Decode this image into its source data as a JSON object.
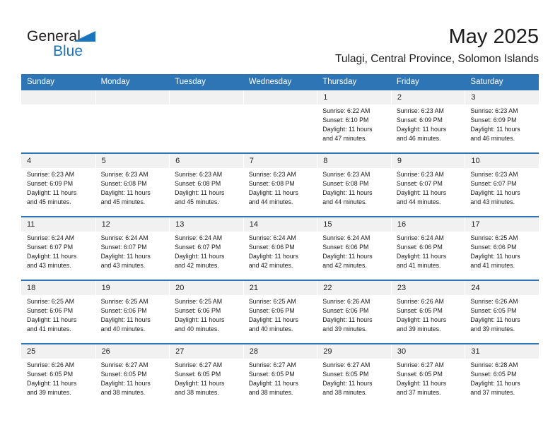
{
  "logo": {
    "general": "General",
    "blue": "Blue"
  },
  "title": "May 2025",
  "subtitle": "Tulagi, Central Province, Solomon Islands",
  "colors": {
    "header_blue": "#2e75b6",
    "logo_blue": "#1b75bc",
    "band_gray": "#f1f1f1",
    "text_dark": "#1a1a1a"
  },
  "weekdays": [
    "Sunday",
    "Monday",
    "Tuesday",
    "Wednesday",
    "Thursday",
    "Friday",
    "Saturday"
  ],
  "weeks": [
    [
      null,
      null,
      null,
      null,
      {
        "day": "1",
        "sunrise": "Sunrise: 6:22 AM",
        "sunset": "Sunset: 6:10 PM",
        "daylight1": "Daylight: 11 hours",
        "daylight2": "and 47 minutes."
      },
      {
        "day": "2",
        "sunrise": "Sunrise: 6:23 AM",
        "sunset": "Sunset: 6:09 PM",
        "daylight1": "Daylight: 11 hours",
        "daylight2": "and 46 minutes."
      },
      {
        "day": "3",
        "sunrise": "Sunrise: 6:23 AM",
        "sunset": "Sunset: 6:09 PM",
        "daylight1": "Daylight: 11 hours",
        "daylight2": "and 46 minutes."
      }
    ],
    [
      {
        "day": "4",
        "sunrise": "Sunrise: 6:23 AM",
        "sunset": "Sunset: 6:09 PM",
        "daylight1": "Daylight: 11 hours",
        "daylight2": "and 45 minutes."
      },
      {
        "day": "5",
        "sunrise": "Sunrise: 6:23 AM",
        "sunset": "Sunset: 6:08 PM",
        "daylight1": "Daylight: 11 hours",
        "daylight2": "and 45 minutes."
      },
      {
        "day": "6",
        "sunrise": "Sunrise: 6:23 AM",
        "sunset": "Sunset: 6:08 PM",
        "daylight1": "Daylight: 11 hours",
        "daylight2": "and 45 minutes."
      },
      {
        "day": "7",
        "sunrise": "Sunrise: 6:23 AM",
        "sunset": "Sunset: 6:08 PM",
        "daylight1": "Daylight: 11 hours",
        "daylight2": "and 44 minutes."
      },
      {
        "day": "8",
        "sunrise": "Sunrise: 6:23 AM",
        "sunset": "Sunset: 6:08 PM",
        "daylight1": "Daylight: 11 hours",
        "daylight2": "and 44 minutes."
      },
      {
        "day": "9",
        "sunrise": "Sunrise: 6:23 AM",
        "sunset": "Sunset: 6:07 PM",
        "daylight1": "Daylight: 11 hours",
        "daylight2": "and 44 minutes."
      },
      {
        "day": "10",
        "sunrise": "Sunrise: 6:23 AM",
        "sunset": "Sunset: 6:07 PM",
        "daylight1": "Daylight: 11 hours",
        "daylight2": "and 43 minutes."
      }
    ],
    [
      {
        "day": "11",
        "sunrise": "Sunrise: 6:24 AM",
        "sunset": "Sunset: 6:07 PM",
        "daylight1": "Daylight: 11 hours",
        "daylight2": "and 43 minutes."
      },
      {
        "day": "12",
        "sunrise": "Sunrise: 6:24 AM",
        "sunset": "Sunset: 6:07 PM",
        "daylight1": "Daylight: 11 hours",
        "daylight2": "and 43 minutes."
      },
      {
        "day": "13",
        "sunrise": "Sunrise: 6:24 AM",
        "sunset": "Sunset: 6:07 PM",
        "daylight1": "Daylight: 11 hours",
        "daylight2": "and 42 minutes."
      },
      {
        "day": "14",
        "sunrise": "Sunrise: 6:24 AM",
        "sunset": "Sunset: 6:06 PM",
        "daylight1": "Daylight: 11 hours",
        "daylight2": "and 42 minutes."
      },
      {
        "day": "15",
        "sunrise": "Sunrise: 6:24 AM",
        "sunset": "Sunset: 6:06 PM",
        "daylight1": "Daylight: 11 hours",
        "daylight2": "and 42 minutes."
      },
      {
        "day": "16",
        "sunrise": "Sunrise: 6:24 AM",
        "sunset": "Sunset: 6:06 PM",
        "daylight1": "Daylight: 11 hours",
        "daylight2": "and 41 minutes."
      },
      {
        "day": "17",
        "sunrise": "Sunrise: 6:25 AM",
        "sunset": "Sunset: 6:06 PM",
        "daylight1": "Daylight: 11 hours",
        "daylight2": "and 41 minutes."
      }
    ],
    [
      {
        "day": "18",
        "sunrise": "Sunrise: 6:25 AM",
        "sunset": "Sunset: 6:06 PM",
        "daylight1": "Daylight: 11 hours",
        "daylight2": "and 41 minutes."
      },
      {
        "day": "19",
        "sunrise": "Sunrise: 6:25 AM",
        "sunset": "Sunset: 6:06 PM",
        "daylight1": "Daylight: 11 hours",
        "daylight2": "and 40 minutes."
      },
      {
        "day": "20",
        "sunrise": "Sunrise: 6:25 AM",
        "sunset": "Sunset: 6:06 PM",
        "daylight1": "Daylight: 11 hours",
        "daylight2": "and 40 minutes."
      },
      {
        "day": "21",
        "sunrise": "Sunrise: 6:25 AM",
        "sunset": "Sunset: 6:06 PM",
        "daylight1": "Daylight: 11 hours",
        "daylight2": "and 40 minutes."
      },
      {
        "day": "22",
        "sunrise": "Sunrise: 6:26 AM",
        "sunset": "Sunset: 6:06 PM",
        "daylight1": "Daylight: 11 hours",
        "daylight2": "and 39 minutes."
      },
      {
        "day": "23",
        "sunrise": "Sunrise: 6:26 AM",
        "sunset": "Sunset: 6:05 PM",
        "daylight1": "Daylight: 11 hours",
        "daylight2": "and 39 minutes."
      },
      {
        "day": "24",
        "sunrise": "Sunrise: 6:26 AM",
        "sunset": "Sunset: 6:05 PM",
        "daylight1": "Daylight: 11 hours",
        "daylight2": "and 39 minutes."
      }
    ],
    [
      {
        "day": "25",
        "sunrise": "Sunrise: 6:26 AM",
        "sunset": "Sunset: 6:05 PM",
        "daylight1": "Daylight: 11 hours",
        "daylight2": "and 39 minutes."
      },
      {
        "day": "26",
        "sunrise": "Sunrise: 6:27 AM",
        "sunset": "Sunset: 6:05 PM",
        "daylight1": "Daylight: 11 hours",
        "daylight2": "and 38 minutes."
      },
      {
        "day": "27",
        "sunrise": "Sunrise: 6:27 AM",
        "sunset": "Sunset: 6:05 PM",
        "daylight1": "Daylight: 11 hours",
        "daylight2": "and 38 minutes."
      },
      {
        "day": "28",
        "sunrise": "Sunrise: 6:27 AM",
        "sunset": "Sunset: 6:05 PM",
        "daylight1": "Daylight: 11 hours",
        "daylight2": "and 38 minutes."
      },
      {
        "day": "29",
        "sunrise": "Sunrise: 6:27 AM",
        "sunset": "Sunset: 6:05 PM",
        "daylight1": "Daylight: 11 hours",
        "daylight2": "and 38 minutes."
      },
      {
        "day": "30",
        "sunrise": "Sunrise: 6:27 AM",
        "sunset": "Sunset: 6:05 PM",
        "daylight1": "Daylight: 11 hours",
        "daylight2": "and 37 minutes."
      },
      {
        "day": "31",
        "sunrise": "Sunrise: 6:28 AM",
        "sunset": "Sunset: 6:05 PM",
        "daylight1": "Daylight: 11 hours",
        "daylight2": "and 37 minutes."
      }
    ]
  ]
}
